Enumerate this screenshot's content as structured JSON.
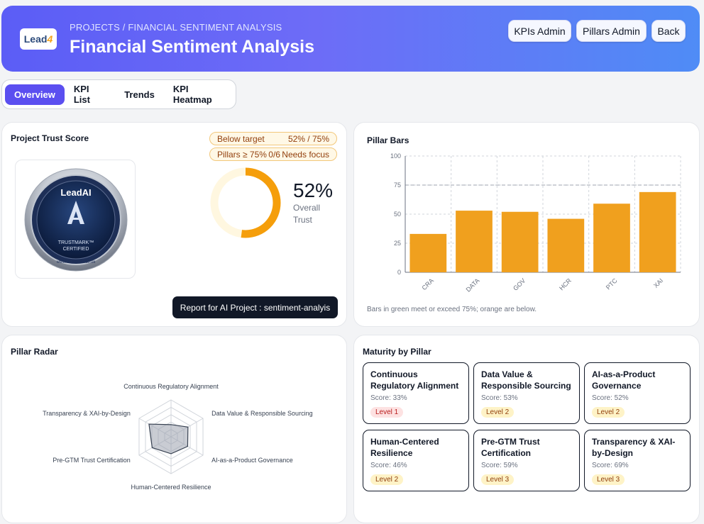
{
  "header": {
    "logo_text": "Lead",
    "logo_accent": "4",
    "breadcrumb": "PROJECTS / FINANCIAL SENTIMENT ANALYSIS",
    "title": "Financial Sentiment Analysis",
    "buttons": {
      "kpis_admin": "KPIs Admin",
      "pillars_admin": "Pillars Admin",
      "back": "Back"
    }
  },
  "tabs": [
    "Overview",
    "KPI List",
    "Trends",
    "KPI Heatmap"
  ],
  "trust": {
    "title": "Project Trust Score",
    "status_label": "Below target",
    "status_value": "52% / 75%",
    "pillars_label": "Pillars ≥ 75%",
    "pillars_value": "0/6",
    "pillars_note": "Needs focus",
    "percent_text": "52%",
    "percent": 52,
    "overall_label": "Overall Trust",
    "badge_brand": "LeadAI",
    "badge_line1": "TRUSTMARK™",
    "badge_line2": "CERTIFIED",
    "badge_url": "www.theleadai.co.uk",
    "report_button": "Report for AI Project : sentiment-analyis"
  },
  "chart_data": {
    "type": "bar",
    "title": "Pillar Bars",
    "categories": [
      "CRA",
      "DATA",
      "GOV",
      "HCR",
      "PTC",
      "XAI"
    ],
    "values": [
      33,
      53,
      52,
      46,
      59,
      69
    ],
    "ylim": [
      0,
      100
    ],
    "yticks": [
      0,
      25,
      50,
      75,
      100
    ],
    "target": 75,
    "grid": true,
    "bar_color": "#f0a01e",
    "note": "Bars in green meet or exceed 75%; orange are below."
  },
  "radar": {
    "title": "Pillar Radar",
    "axes": [
      "Continuous Regulatory Alignment",
      "Data Value & Responsible Sourcing",
      "AI-as-a-Product Governance",
      "Human-Centered Resilience",
      "Pre-GTM Trust Certification",
      "Transparency & XAI-by-Design"
    ],
    "values": [
      33,
      53,
      52,
      46,
      59,
      69
    ]
  },
  "maturity": {
    "title": "Maturity by Pillar",
    "items": [
      {
        "name": "Continuous Regulatory Alignment",
        "score": "Score: 33%",
        "level": "Level 1",
        "tone": "red"
      },
      {
        "name": "Data Value & Responsible Sourcing",
        "score": "Score: 53%",
        "level": "Level 2",
        "tone": "yel"
      },
      {
        "name": "AI-as-a-Product Governance",
        "score": "Score: 52%",
        "level": "Level 2",
        "tone": "yel"
      },
      {
        "name": "Human-Centered Resilience",
        "score": "Score: 46%",
        "level": "Level 2",
        "tone": "yel"
      },
      {
        "name": "Pre-GTM Trust Certification",
        "score": "Score: 59%",
        "level": "Level 3",
        "tone": "yel"
      },
      {
        "name": "Transparency & XAI-by-Design",
        "score": "Score: 69%",
        "level": "Level 3",
        "tone": "yel"
      }
    ]
  }
}
